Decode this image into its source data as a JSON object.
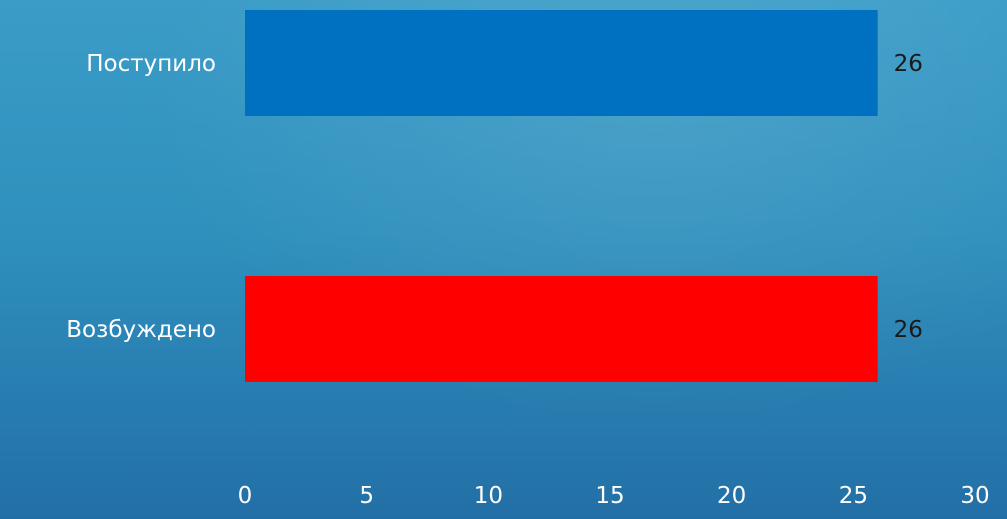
{
  "chart_data": {
    "type": "bar",
    "orientation": "horizontal",
    "categories": [
      "Поступило",
      "Возбуждено"
    ],
    "values": [
      26,
      26
    ],
    "bar_colors": [
      "#0070c0",
      "#ff0000"
    ],
    "data_labels": [
      "26",
      "26"
    ],
    "xlim": [
      0,
      30
    ],
    "x_ticks": [
      0,
      5,
      10,
      15,
      20,
      25,
      30
    ],
    "x_tick_labels": [
      "0",
      "5",
      "10",
      "15",
      "20",
      "25",
      "30"
    ],
    "grid": false,
    "legend": "none"
  },
  "colors": {
    "background_top": "#3a9cc7",
    "background_bottom": "#226fa6"
  }
}
